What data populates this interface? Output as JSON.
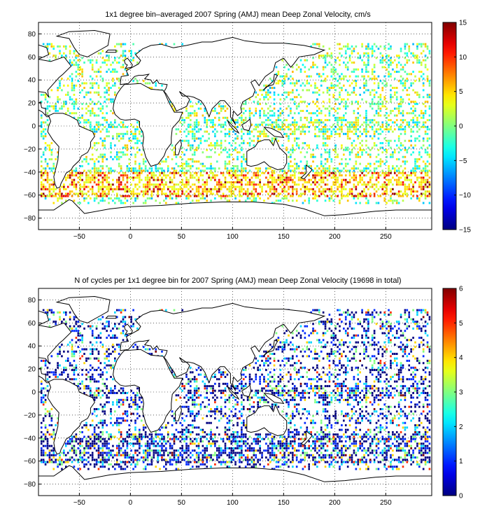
{
  "panels": [
    {
      "title": "1x1 degree bin–averaged 2007 Spring (AMJ) mean Deep Zonal Velocity, cm/s",
      "colorbar": {
        "min": -15,
        "max": 15,
        "ticks": [
          15,
          10,
          5,
          0,
          -5,
          -10,
          -15
        ],
        "colormap": "jet"
      },
      "field": "velocity"
    },
    {
      "title": "N of cycles per 1x1 degree bin for 2007 Spring (AMJ) mean Deep Zonal Velocity (19698 in total)",
      "colorbar": {
        "min": 0,
        "max": 6,
        "ticks": [
          6,
          5,
          4,
          3,
          2,
          1,
          0
        ],
        "colormap": "jet"
      },
      "field": "count"
    }
  ],
  "map": {
    "lon_range": [
      -90,
      295
    ],
    "lat_range": [
      -90,
      90
    ],
    "x_ticks": [
      -50,
      0,
      50,
      100,
      150,
      200,
      250
    ],
    "y_ticks": [
      80,
      60,
      40,
      20,
      0,
      -20,
      -40,
      -60,
      -80
    ],
    "grid": "dotted"
  }
}
